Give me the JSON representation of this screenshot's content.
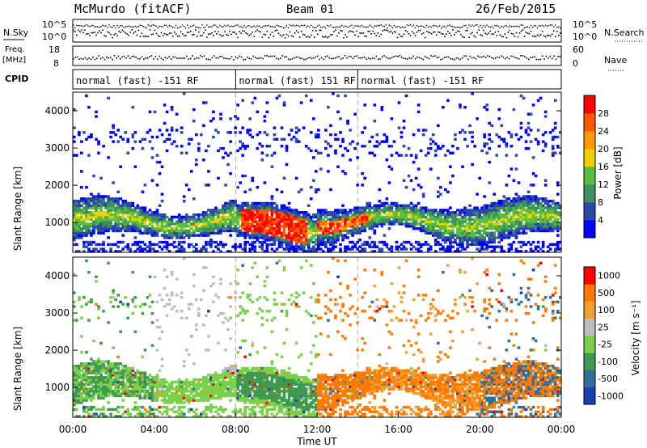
{
  "header": {
    "station": "McMurdo (fitACF)",
    "beam": "Beam 01",
    "date": "26/Feb/2015"
  },
  "left_labels": {
    "nsky": "N.Sky",
    "freq": "Freq.",
    "freq_unit": "[MHz]",
    "cpid": "CPID"
  },
  "right_labels": {
    "nsearch": "N.Search",
    "nave": "Nave"
  },
  "status_panels": {
    "noise_ticks_left": [
      "10^5",
      "10^0"
    ],
    "noise_ticks_right": [
      "10^5",
      "10^0"
    ],
    "freq_ticks": [
      "18",
      "8"
    ],
    "nave_ticks": [
      "60",
      "0"
    ]
  },
  "cpid_segments": [
    {
      "label": "normal (fast) -151 RF",
      "start_hour": 0
    },
    {
      "label": "normal (fast) 151 RF",
      "start_hour": 8
    },
    {
      "label": "normal (fast) -151 RF",
      "start_hour": 14
    }
  ],
  "colors": {
    "power_scale": [
      "#0000ff",
      "#2b49a8",
      "#3f8f5f",
      "#58c040",
      "#f0d000",
      "#ff9a00",
      "#ff5a00",
      "#ff0000"
    ],
    "velocity_scale": [
      "#1a3fb0",
      "#2f6f9f",
      "#3f9a50",
      "#7ad04a",
      "#bdbdbd",
      "#f0a030",
      "#ff7a00",
      "#ff0000"
    ],
    "frame": "#000000"
  },
  "chart_data": [
    {
      "type": "heatmap",
      "panel": "power",
      "title": "",
      "xlabel": "Time UT",
      "ylabel": "Slant Range [km]",
      "x_ticks": [
        "00:00",
        "04:00",
        "08:00",
        "12:00",
        "16:00",
        "20:00",
        "00:00"
      ],
      "y_ticks": [
        "1000",
        "2000",
        "3000",
        "4000"
      ],
      "ylim": [
        200,
        4500
      ],
      "xlim_hours": [
        0,
        24
      ],
      "colorbar_label": "Power [dB]",
      "colorbar_ticks": [
        "4",
        "8",
        "12",
        "16",
        "20",
        "24",
        "28"
      ],
      "colorbar_range": [
        0,
        32
      ]
    },
    {
      "type": "heatmap",
      "panel": "velocity",
      "title": "",
      "xlabel": "Time UT",
      "ylabel": "Slant Range [km]",
      "x_ticks": [
        "00:00",
        "04:00",
        "08:00",
        "12:00",
        "16:00",
        "20:00",
        "00:00"
      ],
      "y_ticks": [
        "1000",
        "2000",
        "3000",
        "4000"
      ],
      "ylim": [
        200,
        4500
      ],
      "xlim_hours": [
        0,
        24
      ],
      "colorbar_label": "Velocity [m s⁻¹]",
      "colorbar_ticks": [
        "1000",
        "500",
        "100",
        "25",
        "-25",
        "-100",
        "-500",
        "-1000"
      ]
    }
  ]
}
